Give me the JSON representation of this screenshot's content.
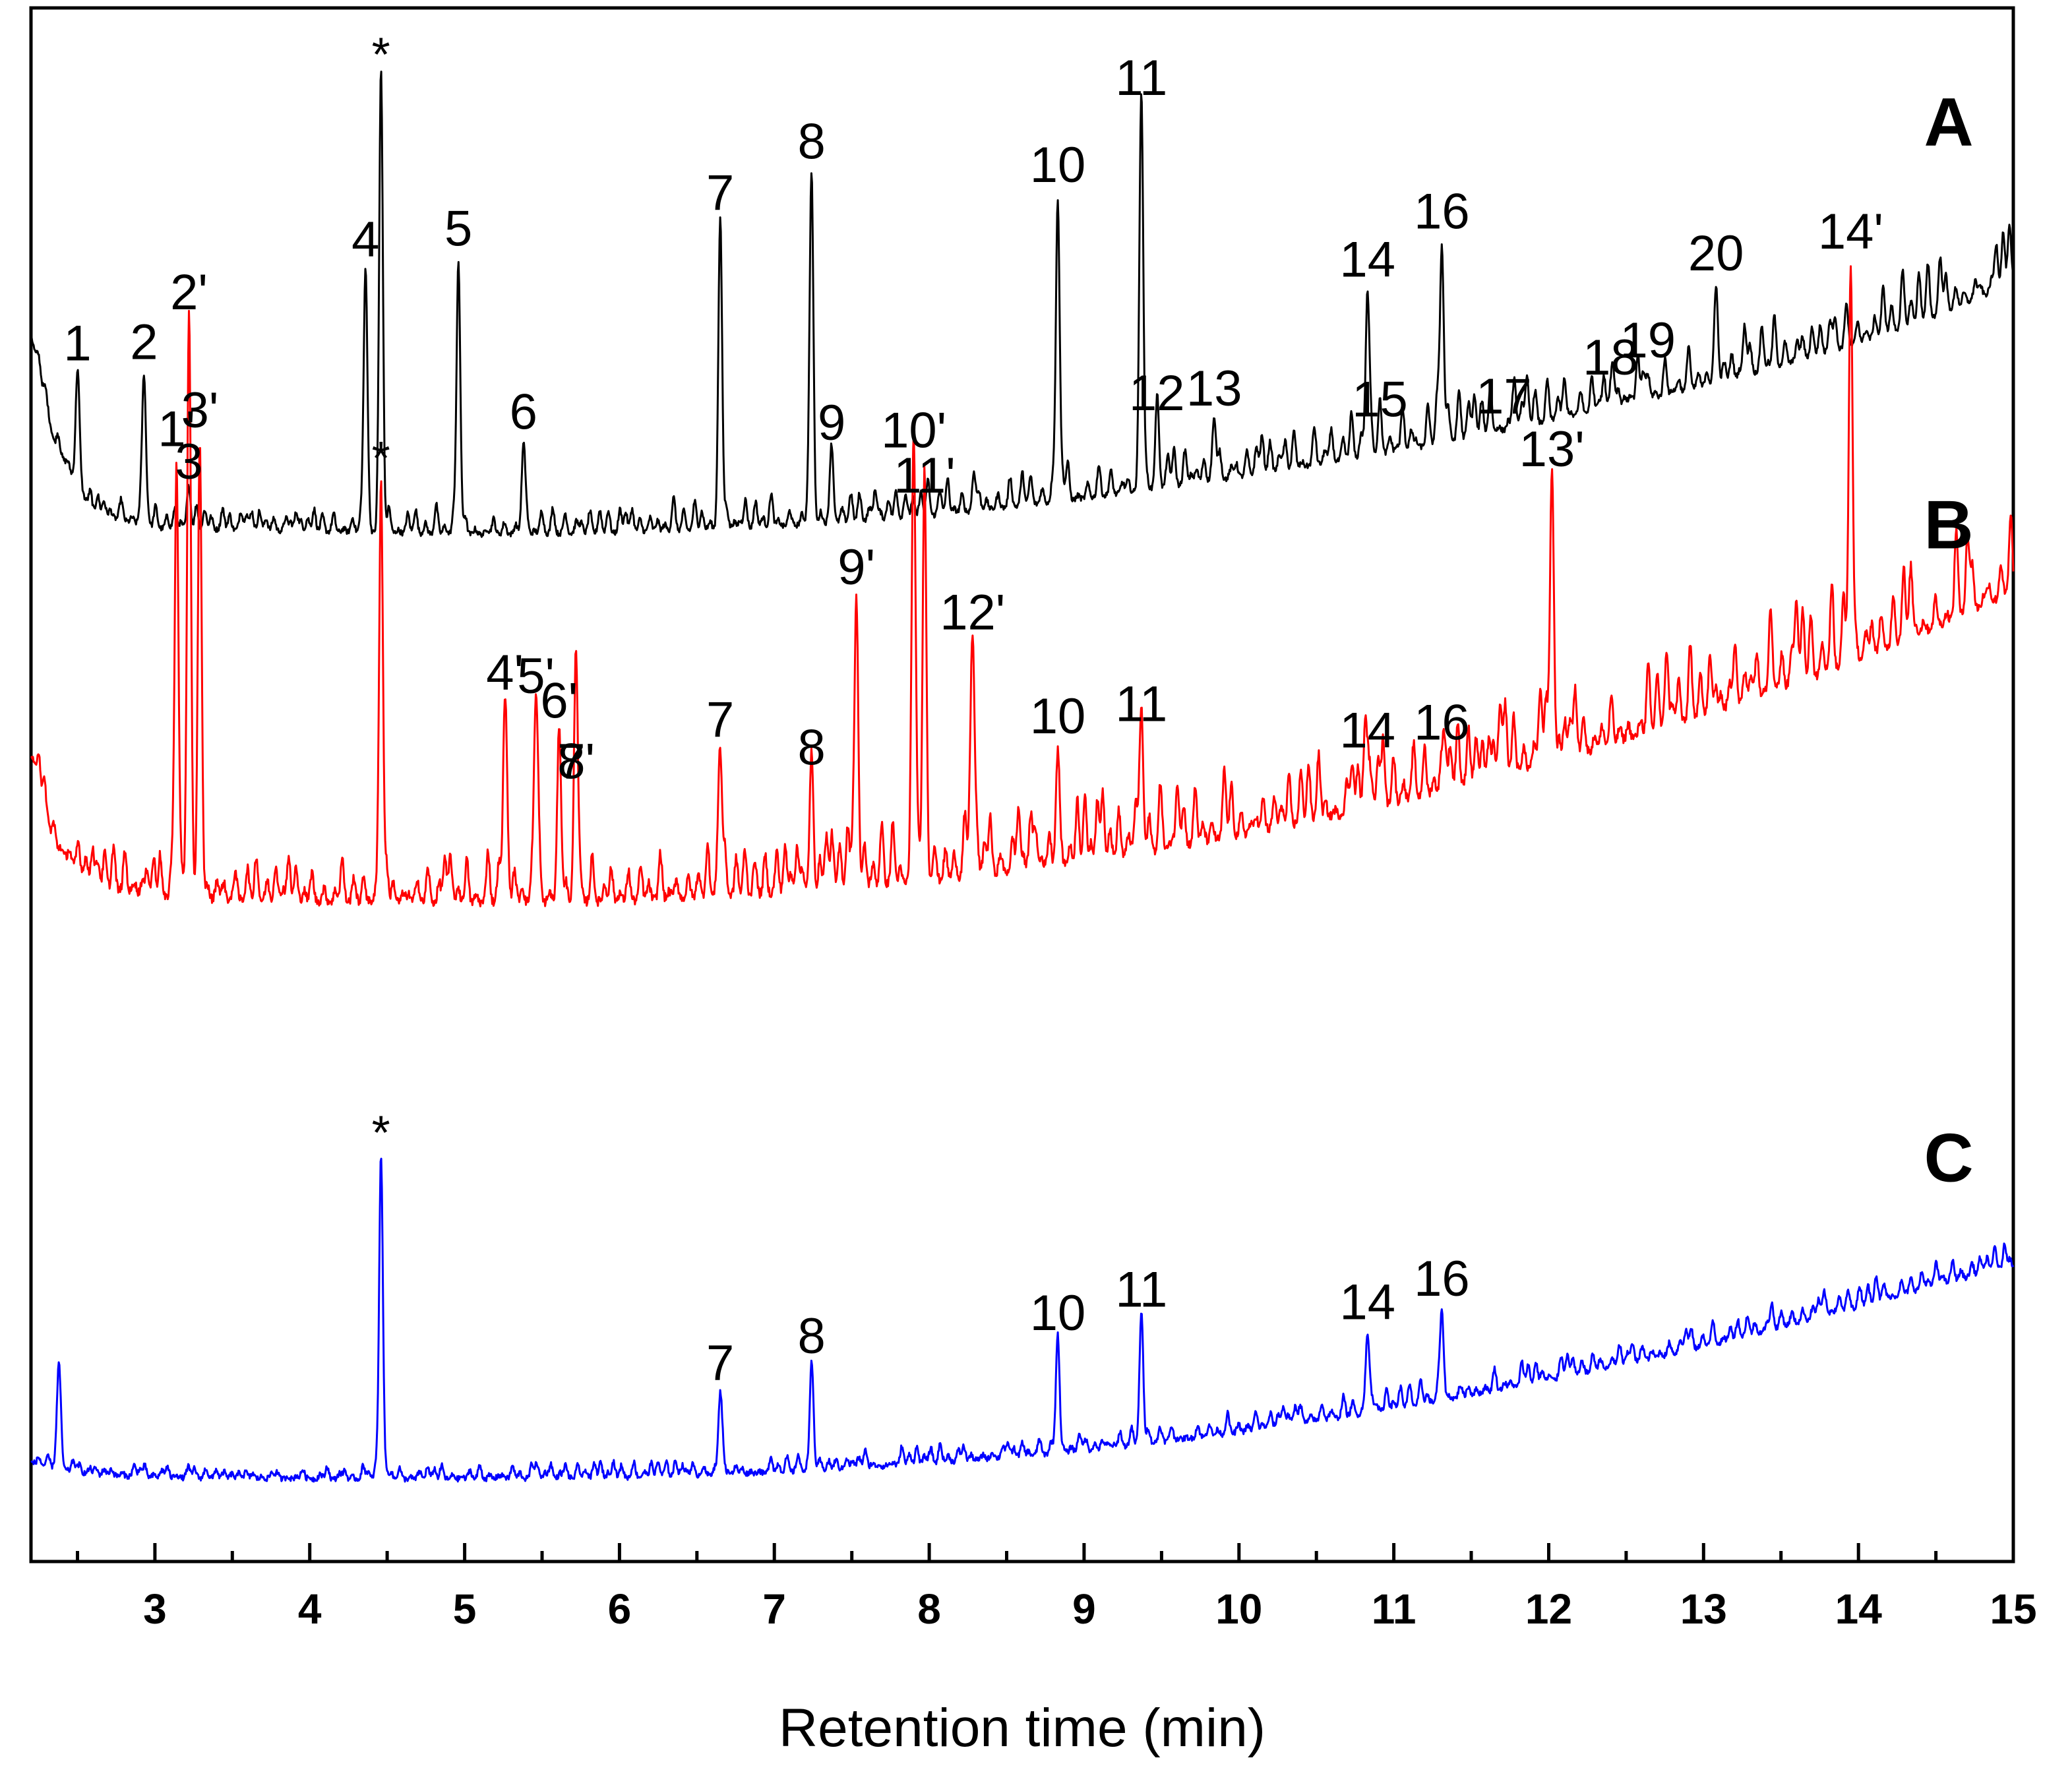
{
  "chart_data": {
    "type": "line",
    "title": "",
    "xlabel": "Retention time (min)",
    "ylabel": "",
    "xlim": [
      2.2,
      15
    ],
    "ylim": [
      0,
      100
    ],
    "x_ticks": [
      3,
      4,
      5,
      6,
      7,
      8,
      9,
      10,
      11,
      12,
      13,
      14,
      15
    ],
    "x_tick_labels": [
      "3",
      "4",
      "5",
      "6",
      "7",
      "8",
      "9",
      "10",
      "11",
      "12",
      "13",
      "14",
      "15"
    ],
    "grid": false,
    "legend": "none",
    "series": [
      {
        "name": "A",
        "color": "#000000",
        "baseline": {
          "x": [
            2.2,
            2.35,
            2.6,
            3.0,
            4.0,
            5.0,
            6.0,
            7.0,
            8.0,
            9.0,
            10.0,
            11.0,
            12.0,
            13.0,
            14.0,
            14.5,
            15.0
          ],
          "y": [
            79,
            72,
            67.5,
            66.5,
            66.3,
            66.1,
            66.2,
            66.6,
            67.3,
            68.4,
            69.8,
            71.4,
            73.4,
            75.6,
            78.4,
            80.2,
            82.3
          ]
        },
        "peaks": [
          {
            "label": "1",
            "x": 2.5,
            "y": 76.2
          },
          {
            "label": "2",
            "x": 2.93,
            "y": 76.3
          },
          {
            "label": "3",
            "x": 3.22,
            "y": 68.6
          },
          {
            "label": "4",
            "x": 4.36,
            "y": 82.9
          },
          {
            "label": "*",
            "x": 4.46,
            "y": 95.6
          },
          {
            "label": "5",
            "x": 4.96,
            "y": 83.6
          },
          {
            "label": "6",
            "x": 5.38,
            "y": 71.8
          },
          {
            "label": "7",
            "x": 6.65,
            "y": 85.9
          },
          {
            "label": "8",
            "x": 7.24,
            "y": 89.2
          },
          {
            "label": "9",
            "x": 7.37,
            "y": 71.1
          },
          {
            "label": "10",
            "x": 8.83,
            "y": 87.7
          },
          {
            "label": "11",
            "x": 9.37,
            "y": 93.3
          },
          {
            "label": "12",
            "x": 9.47,
            "y": 73.0
          },
          {
            "label": "13",
            "x": 9.84,
            "y": 73.3
          },
          {
            "label": "14",
            "x": 10.83,
            "y": 81.6
          },
          {
            "label": "15",
            "x": 10.91,
            "y": 72.6
          },
          {
            "label": "16",
            "x": 11.31,
            "y": 84.7
          },
          {
            "label": "17",
            "x": 11.71,
            "y": 72.8
          },
          {
            "label": "18",
            "x": 12.4,
            "y": 75.3
          },
          {
            "label": "19",
            "x": 12.64,
            "y": 76.4
          },
          {
            "label": "20",
            "x": 13.08,
            "y": 82.0
          }
        ]
      },
      {
        "name": "B",
        "color": "#ff0000",
        "baseline": {
          "x": [
            2.2,
            2.35,
            2.6,
            3.0,
            4.0,
            5.0,
            6.0,
            7.0,
            8.0,
            9.0,
            10.0,
            11.0,
            12.0,
            13.0,
            14.0,
            14.5,
            15.0
          ],
          "y": [
            52,
            46,
            43.6,
            42.7,
            42.5,
            42.4,
            42.5,
            43.0,
            43.8,
            45.0,
            46.7,
            48.8,
            51.4,
            54.4,
            58.0,
            60.2,
            62.4
          ]
        },
        "peaks": [
          {
            "label": "1'",
            "x": 3.14,
            "y": 70.7
          },
          {
            "label": "2'",
            "x": 3.22,
            "y": 79.5
          },
          {
            "label": "3'",
            "x": 3.29,
            "y": 71.9
          },
          {
            "label": "*",
            "x": 4.46,
            "y": 69.6
          },
          {
            "label": "4'",
            "x": 5.26,
            "y": 55.0
          },
          {
            "label": "5'",
            "x": 5.46,
            "y": 54.8
          },
          {
            "label": "6'",
            "x": 5.61,
            "y": 53.2
          },
          {
            "label": "7'",
            "x": 5.72,
            "y": 49.3
          },
          {
            "label": "8'",
            "x": 5.72,
            "y": 49.3
          },
          {
            "label": "7",
            "x": 6.65,
            "y": 52.0
          },
          {
            "label": "8",
            "x": 7.24,
            "y": 50.2
          },
          {
            "label": "9'",
            "x": 7.53,
            "y": 61.8
          },
          {
            "label": "10'",
            "x": 7.9,
            "y": 70.6
          },
          {
            "label": "11'",
            "x": 7.97,
            "y": 67.7
          },
          {
            "label": "12'",
            "x": 8.28,
            "y": 58.9
          },
          {
            "label": "10",
            "x": 8.83,
            "y": 52.2
          },
          {
            "label": "11",
            "x": 9.37,
            "y": 53.0
          },
          {
            "label": "14",
            "x": 10.83,
            "y": 51.3
          },
          {
            "label": "16",
            "x": 11.31,
            "y": 51.8
          },
          {
            "label": "13'",
            "x": 12.02,
            "y": 69.4
          },
          {
            "label": "14'",
            "x": 13.95,
            "y": 83.4
          }
        ]
      },
      {
        "name": "C",
        "color": "#0000ff",
        "baseline": {
          "x": [
            2.2,
            2.35,
            2.6,
            3.0,
            4.0,
            5.0,
            6.0,
            7.0,
            8.0,
            9.0,
            10.0,
            11.0,
            12.0,
            13.0,
            14.0,
            14.5,
            15.0
          ],
          "y": [
            6.4,
            6.0,
            5.6,
            5.4,
            5.3,
            5.3,
            5.4,
            5.7,
            6.3,
            7.1,
            8.3,
            9.8,
            11.6,
            13.8,
            16.4,
            17.8,
            19.0
          ]
        },
        "peaks": [
          {
            "label": "",
            "x": 2.38,
            "y": 12.4
          },
          {
            "label": "*",
            "x": 4.46,
            "y": 26.2
          },
          {
            "label": "7",
            "x": 6.65,
            "y": 10.6
          },
          {
            "label": "8",
            "x": 7.24,
            "y": 12.3
          },
          {
            "label": "10",
            "x": 8.83,
            "y": 13.8
          },
          {
            "label": "11",
            "x": 9.37,
            "y": 15.3
          },
          {
            "label": "14",
            "x": 10.83,
            "y": 14.5
          },
          {
            "label": "16",
            "x": 11.31,
            "y": 16.0
          }
        ]
      }
    ]
  },
  "panel_labels": [
    "A",
    "B",
    "C"
  ]
}
